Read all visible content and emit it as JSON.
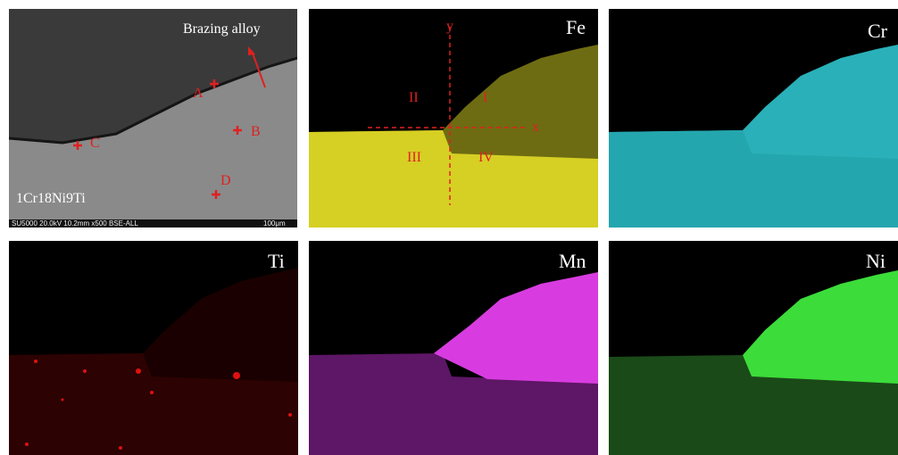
{
  "panels": [
    {
      "label": "Brazing alloy",
      "points": [
        "A",
        "B",
        "C",
        "D"
      ],
      "material": "1Cr18Ni9Ti",
      "info": "SU5000 20.0kV 10.2mm x500 BSE-ALL",
      "scale": "100μm"
    },
    {
      "label": "Fe",
      "axes": [
        "y",
        "x"
      ],
      "regions": [
        "I",
        "II",
        "III",
        "IV"
      ]
    },
    {
      "label": "Cr"
    },
    {
      "label": "Ti"
    },
    {
      "label": "Mn"
    },
    {
      "label": "Ni"
    }
  ]
}
